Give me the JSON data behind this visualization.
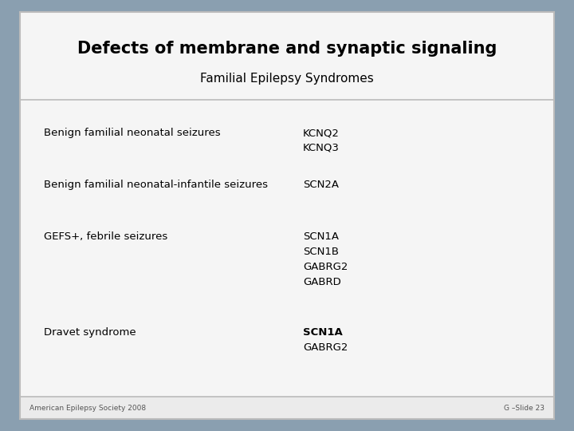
{
  "title": "Defects of membrane and synaptic signaling",
  "subtitle": "Familial Epilepsy Syndromes",
  "bg_outer": "#8a9fb0",
  "bg_inner": "#f5f5f5",
  "bg_footer": "#ebebeb",
  "border_color": "#bbbbbb",
  "footer_left": "American Epilepsy Society 2008",
  "footer_right": "G –Slide 23",
  "rows": [
    {
      "syndrome": "Benign familial neonatal seizures",
      "genes": [
        "KCNQ2",
        "KCNQ3"
      ],
      "bold_genes": []
    },
    {
      "syndrome": "Benign familial neonatal-infantile seizures",
      "genes": [
        "SCN2A"
      ],
      "bold_genes": []
    },
    {
      "syndrome": "GEFS+, febrile seizures",
      "genes": [
        "SCN1A",
        "SCN1B",
        "GABRG2",
        "GABRD"
      ],
      "bold_genes": []
    },
    {
      "syndrome": "Dravet syndrome",
      "genes": [
        "SCN1A",
        "GABRG2"
      ],
      "bold_genes": [
        "SCN1A"
      ]
    }
  ]
}
